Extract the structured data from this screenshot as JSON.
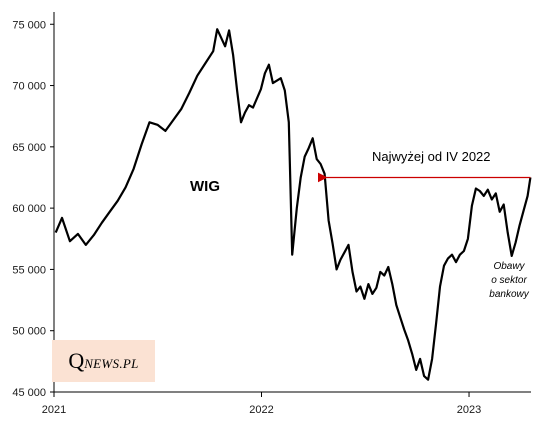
{
  "chart_data": {
    "type": "line",
    "title": "",
    "xlabel": "",
    "ylabel": "",
    "x_ticks": [
      "2021",
      "2022",
      "2023"
    ],
    "y_ticks": [
      "45 000",
      "50 000",
      "55 000",
      "60 000",
      "65 000",
      "70 000",
      "75 000"
    ],
    "ylim": [
      45000,
      76000
    ],
    "xlim": [
      "2021-01-01",
      "2023-04-20"
    ],
    "grid": false,
    "series": [
      {
        "name": "WIG",
        "color": "#000000",
        "points": [
          [
            "2021-01-04",
            58000
          ],
          [
            "2021-01-15",
            59200
          ],
          [
            "2021-01-29",
            57300
          ],
          [
            "2021-02-12",
            57900
          ],
          [
            "2021-02-26",
            57000
          ],
          [
            "2021-03-12",
            57800
          ],
          [
            "2021-03-26",
            58800
          ],
          [
            "2021-04-09",
            59700
          ],
          [
            "2021-04-23",
            60600
          ],
          [
            "2021-05-07",
            61700
          ],
          [
            "2021-05-21",
            63200
          ],
          [
            "2021-06-04",
            65200
          ],
          [
            "2021-06-18",
            67000
          ],
          [
            "2021-07-02",
            66800
          ],
          [
            "2021-07-16",
            66300
          ],
          [
            "2021-07-30",
            67200
          ],
          [
            "2021-08-13",
            68100
          ],
          [
            "2021-08-27",
            69400
          ],
          [
            "2021-09-10",
            70800
          ],
          [
            "2021-09-24",
            71800
          ],
          [
            "2021-10-08",
            72800
          ],
          [
            "2021-10-15",
            74600
          ],
          [
            "2021-10-29",
            73200
          ],
          [
            "2021-11-05",
            74500
          ],
          [
            "2021-11-12",
            72500
          ],
          [
            "2021-11-19",
            69600
          ],
          [
            "2021-11-26",
            67000
          ],
          [
            "2021-12-03",
            67800
          ],
          [
            "2021-12-10",
            68400
          ],
          [
            "2021-12-17",
            68200
          ],
          [
            "2021-12-31",
            69700
          ],
          [
            "2022-01-07",
            71000
          ],
          [
            "2022-01-14",
            71700
          ],
          [
            "2022-01-21",
            70200
          ],
          [
            "2022-02-04",
            70600
          ],
          [
            "2022-02-11",
            69600
          ],
          [
            "2022-02-18",
            67000
          ],
          [
            "2022-02-24",
            56200
          ],
          [
            "2022-03-04",
            60000
          ],
          [
            "2022-03-11",
            62500
          ],
          [
            "2022-03-18",
            64200
          ],
          [
            "2022-03-25",
            64900
          ],
          [
            "2022-04-01",
            65700
          ],
          [
            "2022-04-08",
            64000
          ],
          [
            "2022-04-15",
            63600
          ],
          [
            "2022-04-22",
            62800
          ],
          [
            "2022-04-29",
            59000
          ],
          [
            "2022-05-06",
            57100
          ],
          [
            "2022-05-13",
            55000
          ],
          [
            "2022-05-20",
            55800
          ],
          [
            "2022-05-27",
            56400
          ],
          [
            "2022-06-03",
            57000
          ],
          [
            "2022-06-10",
            54800
          ],
          [
            "2022-06-17",
            53200
          ],
          [
            "2022-06-24",
            53600
          ],
          [
            "2022-07-01",
            52600
          ],
          [
            "2022-07-08",
            53800
          ],
          [
            "2022-07-15",
            53000
          ],
          [
            "2022-07-22",
            53500
          ],
          [
            "2022-07-29",
            54800
          ],
          [
            "2022-08-05",
            54500
          ],
          [
            "2022-08-12",
            55200
          ],
          [
            "2022-08-19",
            53800
          ],
          [
            "2022-08-26",
            52100
          ],
          [
            "2022-09-02",
            51100
          ],
          [
            "2022-09-09",
            50100
          ],
          [
            "2022-09-16",
            49200
          ],
          [
            "2022-09-23",
            48100
          ],
          [
            "2022-09-30",
            46800
          ],
          [
            "2022-10-07",
            47700
          ],
          [
            "2022-10-14",
            46300
          ],
          [
            "2022-10-21",
            46000
          ],
          [
            "2022-10-28",
            47700
          ],
          [
            "2022-11-04",
            50600
          ],
          [
            "2022-11-11",
            53600
          ],
          [
            "2022-11-18",
            55300
          ],
          [
            "2022-11-25",
            55900
          ],
          [
            "2022-12-02",
            56200
          ],
          [
            "2022-12-09",
            55600
          ],
          [
            "2022-12-16",
            56200
          ],
          [
            "2022-12-23",
            56500
          ],
          [
            "2022-12-30",
            57500
          ],
          [
            "2023-01-06",
            60200
          ],
          [
            "2023-01-13",
            61600
          ],
          [
            "2023-01-20",
            61400
          ],
          [
            "2023-01-27",
            61000
          ],
          [
            "2023-02-03",
            61500
          ],
          [
            "2023-02-10",
            60700
          ],
          [
            "2023-02-17",
            61200
          ],
          [
            "2023-02-24",
            59700
          ],
          [
            "2023-03-03",
            60300
          ],
          [
            "2023-03-10",
            58000
          ],
          [
            "2023-03-17",
            56100
          ],
          [
            "2023-03-24",
            57200
          ],
          [
            "2023-03-31",
            58600
          ],
          [
            "2023-04-07",
            59800
          ],
          [
            "2023-04-14",
            61000
          ],
          [
            "2023-04-19",
            62500
          ]
        ]
      }
    ],
    "series_label": "WIG",
    "annotations": {
      "arrow_label": "Najwyżej od IV 2022",
      "arrow_color": "#cc0000",
      "arrow_level": 62500,
      "arrow_from": "2023-04-19",
      "arrow_to": "2022-04-15",
      "note_lines": [
        "Obawy",
        "o sektor",
        "bankowy"
      ]
    }
  },
  "logo": {
    "q": "Q",
    "rest": "NEWS.PL"
  }
}
